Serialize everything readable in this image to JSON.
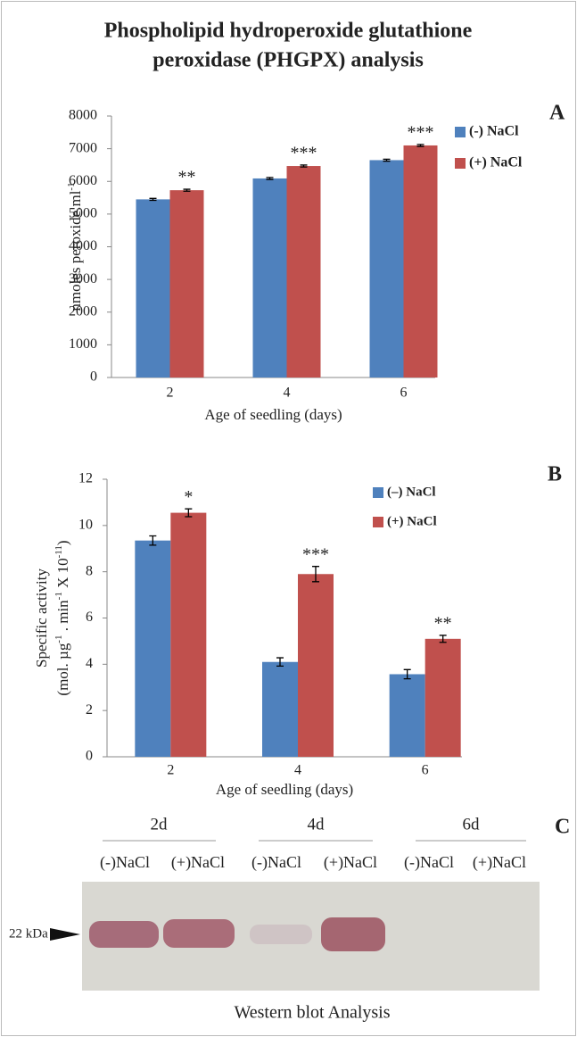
{
  "title": [
    "Phospholipid hydroperoxide glutathione",
    "peroxidase (PHGPX) analysis"
  ],
  "chart_data": [
    {
      "type": "bar",
      "panel": "A",
      "ylabel": [
        [
          "nmoles peroxide.ml",
          "-1"
        ]
      ],
      "xlabel": "Age of seedling (days)",
      "categories": [
        "2",
        "4",
        "6"
      ],
      "series": [
        {
          "name": "(-) NaCl",
          "color": "#4f81bd",
          "values": [
            5450,
            6090,
            6650
          ],
          "errors": [
            30,
            30,
            30
          ]
        },
        {
          "name": "(+) NaCl",
          "color": "#c0504d",
          "values": [
            5730,
            6470,
            7100
          ],
          "errors": [
            30,
            30,
            30
          ],
          "annotations": [
            "**",
            "***",
            "***"
          ]
        }
      ],
      "ylim": [
        0,
        8000
      ],
      "yticks": [
        0,
        1000,
        2000,
        3000,
        4000,
        5000,
        6000,
        7000,
        8000
      ]
    },
    {
      "type": "bar",
      "panel": "B",
      "ylabel": [
        [
          "Specific activity"
        ],
        [
          "(mol. µg",
          "-1",
          " . min",
          "-1",
          " X 10",
          "-11",
          ")"
        ]
      ],
      "xlabel": "Age of seedling (days)",
      "categories": [
        "2",
        "4",
        "6"
      ],
      "series": [
        {
          "name": "(–) NaCl",
          "color": "#4f81bd",
          "values": [
            9.35,
            4.1,
            3.57
          ],
          "errors": [
            0.2,
            0.18,
            0.2
          ]
        },
        {
          "name": "(+) NaCl",
          "color": "#c0504d",
          "values": [
            10.55,
            7.9,
            5.1
          ],
          "errors": [
            0.17,
            0.33,
            0.15
          ],
          "annotations": [
            "*",
            "***",
            "**"
          ]
        }
      ],
      "ylim": [
        0,
        12
      ],
      "yticks": [
        0,
        2,
        4,
        6,
        8,
        10,
        12
      ]
    }
  ],
  "blot": {
    "panel": "C",
    "days": [
      "2d",
      "4d",
      "6d"
    ],
    "lanes": [
      "(-)NaCl",
      "(+)NaCl",
      "(-)NaCl",
      "(+)NaCl",
      "(-)NaCl",
      "(+)NaCl"
    ],
    "marker": "22 kDa",
    "caption": "Western blot  Analysis"
  }
}
